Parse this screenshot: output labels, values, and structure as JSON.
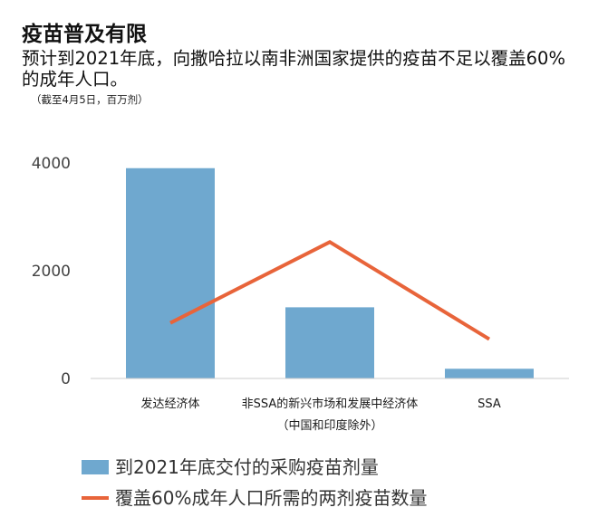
{
  "title": "疫苗普及有限",
  "subtitle": "预计到2021年底，向撒哈拉以南非洲国家提供的疫苗不足以覆盖60%的成年人口。",
  "note": "（截至4月5日，百万剂）",
  "colors": {
    "bar": "#6fa8cf",
    "line": "#e8643a",
    "axis": "#cccccc"
  },
  "chart_data": {
    "type": "bar",
    "title": "疫苗普及有限",
    "subtitle": "预计到2021年底，向撒哈拉以南非洲国家提供的疫苗不足以覆盖60%的成年人口。",
    "categories": [
      [
        "发达经济体"
      ],
      [
        "非SSA的新兴市场和发展中经济体",
        "（中国和印度除外）"
      ],
      [
        "SSA"
      ]
    ],
    "series": [
      {
        "name": "到2021年底交付的采购疫苗剂量",
        "type": "bar",
        "values": [
          3900,
          1320,
          180
        ]
      },
      {
        "name": "覆盖60%成年人口所需的两剂疫苗数量",
        "type": "line",
        "values": [
          1030,
          2530,
          730
        ]
      }
    ],
    "yticks": [
      0,
      2000,
      4000
    ],
    "ylim": [
      0,
      4500
    ],
    "legend_position": "bottom",
    "grid": false
  }
}
